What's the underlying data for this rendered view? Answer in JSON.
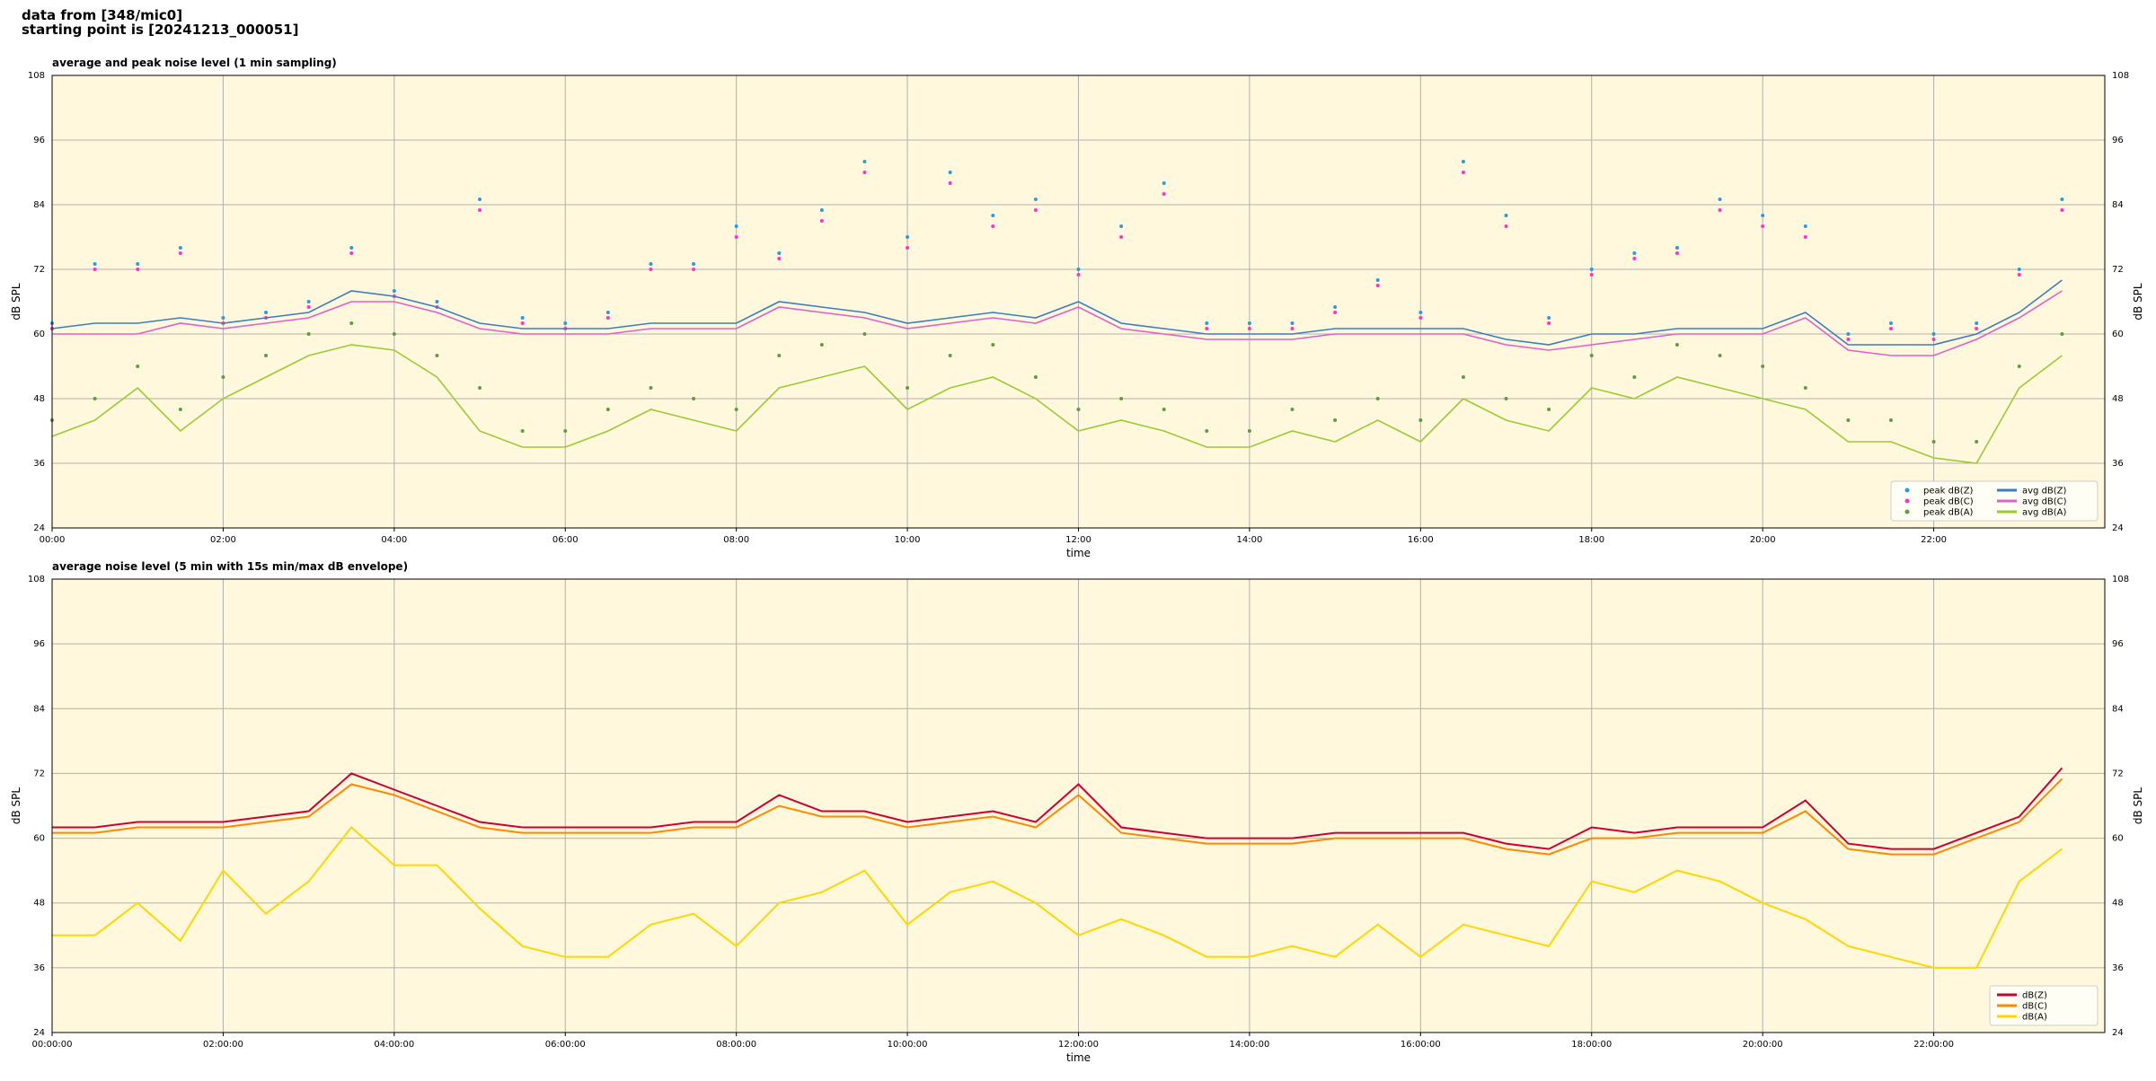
{
  "header": {
    "lines": [
      "data from [348/mic0]",
      "starting point is [20241213_000051]"
    ]
  },
  "chart_data": [
    {
      "type": "line",
      "title": "average and peak noise level (1 min sampling)",
      "xlabel": "time",
      "ylabel": "dB SPL",
      "ylim": [
        24,
        108
      ],
      "yticks": [
        24,
        36,
        48,
        60,
        72,
        84,
        96,
        108
      ],
      "xlim": [
        "00:00",
        "24:00"
      ],
      "xticks": [
        "00:00",
        "02:00",
        "04:00",
        "06:00",
        "08:00",
        "10:00",
        "12:00",
        "14:00",
        "16:00",
        "18:00",
        "20:00",
        "22:00"
      ],
      "grid": true,
      "legend": "lower right",
      "legend_columns": 2,
      "x": [
        "00:00",
        "00:30",
        "01:00",
        "01:30",
        "02:00",
        "02:30",
        "03:00",
        "03:30",
        "04:00",
        "04:30",
        "05:00",
        "05:30",
        "06:00",
        "06:30",
        "07:00",
        "07:30",
        "08:00",
        "08:30",
        "09:00",
        "09:30",
        "10:00",
        "10:30",
        "11:00",
        "11:30",
        "12:00",
        "12:30",
        "13:00",
        "13:30",
        "14:00",
        "14:30",
        "15:00",
        "15:30",
        "16:00",
        "16:30",
        "17:00",
        "17:30",
        "18:00",
        "18:30",
        "19:00",
        "19:30",
        "20:00",
        "20:30",
        "21:00",
        "21:30",
        "22:00",
        "22:30",
        "23:00",
        "23:30"
      ],
      "series": [
        {
          "name": "peak dB(Z)",
          "kind": "scatter",
          "color": "#2b9be0",
          "values": [
            62,
            73,
            73,
            76,
            63,
            64,
            66,
            76,
            68,
            66,
            85,
            63,
            62,
            64,
            73,
            73,
            80,
            75,
            83,
            92,
            78,
            90,
            82,
            85,
            72,
            80,
            88,
            62,
            62,
            62,
            65,
            70,
            64,
            92,
            82,
            63,
            72,
            75,
            76,
            85,
            82,
            80,
            60,
            62,
            60,
            62,
            72,
            85
          ]
        },
        {
          "name": "peak dB(C)",
          "kind": "scatter",
          "color": "#ff33cc",
          "values": [
            61,
            72,
            72,
            75,
            62,
            63,
            65,
            75,
            67,
            65,
            83,
            62,
            61,
            63,
            72,
            72,
            78,
            74,
            81,
            90,
            76,
            88,
            80,
            83,
            71,
            78,
            86,
            61,
            61,
            61,
            64,
            69,
            63,
            90,
            80,
            62,
            71,
            74,
            75,
            83,
            80,
            78,
            59,
            61,
            59,
            61,
            71,
            83
          ]
        },
        {
          "name": "peak dB(A)",
          "kind": "scatter",
          "color": "#5aa040",
          "values": [
            44,
            48,
            54,
            46,
            52,
            56,
            60,
            62,
            60,
            56,
            50,
            42,
            42,
            46,
            50,
            48,
            46,
            56,
            58,
            60,
            50,
            56,
            58,
            52,
            46,
            48,
            46,
            42,
            42,
            46,
            44,
            48,
            44,
            52,
            48,
            46,
            56,
            52,
            58,
            56,
            54,
            50,
            44,
            44,
            40,
            40,
            54,
            60
          ]
        },
        {
          "name": "avg dB(Z)",
          "kind": "line",
          "color": "#3a7ec0",
          "values": [
            61,
            62,
            62,
            63,
            62,
            63,
            64,
            68,
            67,
            65,
            62,
            61,
            61,
            61,
            62,
            62,
            62,
            66,
            65,
            64,
            62,
            63,
            64,
            63,
            66,
            62,
            61,
            60,
            60,
            60,
            61,
            61,
            61,
            61,
            59,
            58,
            60,
            60,
            61,
            61,
            61,
            64,
            58,
            58,
            58,
            60,
            64,
            70
          ]
        },
        {
          "name": "avg dB(C)",
          "kind": "line",
          "color": "#e060cc",
          "values": [
            60,
            60,
            60,
            62,
            61,
            62,
            63,
            66,
            66,
            64,
            61,
            60,
            60,
            60,
            61,
            61,
            61,
            65,
            64,
            63,
            61,
            62,
            63,
            62,
            65,
            61,
            60,
            59,
            59,
            59,
            60,
            60,
            60,
            60,
            58,
            57,
            58,
            59,
            60,
            60,
            60,
            63,
            57,
            56,
            56,
            59,
            63,
            68
          ]
        },
        {
          "name": "avg dB(A)",
          "kind": "line",
          "color": "#99cc33",
          "values": [
            41,
            44,
            50,
            42,
            48,
            52,
            56,
            58,
            57,
            52,
            42,
            39,
            39,
            42,
            46,
            44,
            42,
            50,
            52,
            54,
            46,
            50,
            52,
            48,
            42,
            44,
            42,
            39,
            39,
            42,
            40,
            44,
            40,
            48,
            44,
            42,
            50,
            48,
            52,
            50,
            48,
            46,
            40,
            40,
            37,
            36,
            50,
            56
          ]
        }
      ]
    },
    {
      "type": "line",
      "title": "average noise level (5 min with 15s min/max dB envelope)",
      "xlabel": "time",
      "ylabel": "dB SPL",
      "ylim": [
        24,
        108
      ],
      "yticks": [
        24,
        36,
        48,
        60,
        72,
        84,
        96,
        108
      ],
      "xlim": [
        "00:00:00",
        "24:00:00"
      ],
      "xticks": [
        "00:00:00",
        "02:00:00",
        "04:00:00",
        "06:00:00",
        "08:00:00",
        "10:00:00",
        "12:00:00",
        "14:00:00",
        "16:00:00",
        "18:00:00",
        "20:00:00",
        "22:00:00"
      ],
      "grid": true,
      "legend": "lower right",
      "legend_columns": 1,
      "x": [
        "00:00:00",
        "00:30:00",
        "01:00:00",
        "01:30:00",
        "02:00:00",
        "02:30:00",
        "03:00:00",
        "03:30:00",
        "04:00:00",
        "04:30:00",
        "05:00:00",
        "05:30:00",
        "06:00:00",
        "06:30:00",
        "07:00:00",
        "07:30:00",
        "08:00:00",
        "08:30:00",
        "09:00:00",
        "09:30:00",
        "10:00:00",
        "10:30:00",
        "11:00:00",
        "11:30:00",
        "12:00:00",
        "12:30:00",
        "13:00:00",
        "13:30:00",
        "14:00:00",
        "14:30:00",
        "15:00:00",
        "15:30:00",
        "16:00:00",
        "16:30:00",
        "17:00:00",
        "17:30:00",
        "18:00:00",
        "18:30:00",
        "19:00:00",
        "19:30:00",
        "20:00:00",
        "20:30:00",
        "21:00:00",
        "21:30:00",
        "22:00:00",
        "22:30:00",
        "23:00:00",
        "23:30:00"
      ],
      "series": [
        {
          "name": "dB(Z)",
          "kind": "line",
          "color": "#cc0033",
          "values": [
            62,
            62,
            63,
            63,
            63,
            64,
            65,
            72,
            69,
            66,
            63,
            62,
            62,
            62,
            62,
            63,
            63,
            68,
            65,
            65,
            63,
            64,
            65,
            63,
            70,
            62,
            61,
            60,
            60,
            60,
            61,
            61,
            61,
            61,
            59,
            58,
            62,
            61,
            62,
            62,
            62,
            67,
            59,
            58,
            58,
            61,
            64,
            73
          ]
        },
        {
          "name": "dB(C)",
          "kind": "line",
          "color": "#ff8800",
          "values": [
            61,
            61,
            62,
            62,
            62,
            63,
            64,
            70,
            68,
            65,
            62,
            61,
            61,
            61,
            61,
            62,
            62,
            66,
            64,
            64,
            62,
            63,
            64,
            62,
            68,
            61,
            60,
            59,
            59,
            59,
            60,
            60,
            60,
            60,
            58,
            57,
            60,
            60,
            61,
            61,
            61,
            65,
            58,
            57,
            57,
            60,
            63,
            71
          ]
        },
        {
          "name": "dB(A)",
          "kind": "line",
          "color": "#ffd700",
          "values": [
            42,
            42,
            48,
            41,
            54,
            46,
            52,
            62,
            55,
            55,
            47,
            40,
            38,
            38,
            44,
            46,
            40,
            48,
            50,
            54,
            44,
            50,
            52,
            48,
            42,
            45,
            42,
            38,
            38,
            40,
            38,
            44,
            38,
            44,
            42,
            40,
            52,
            50,
            54,
            52,
            48,
            45,
            40,
            38,
            36,
            36,
            52,
            58
          ]
        }
      ]
    }
  ]
}
